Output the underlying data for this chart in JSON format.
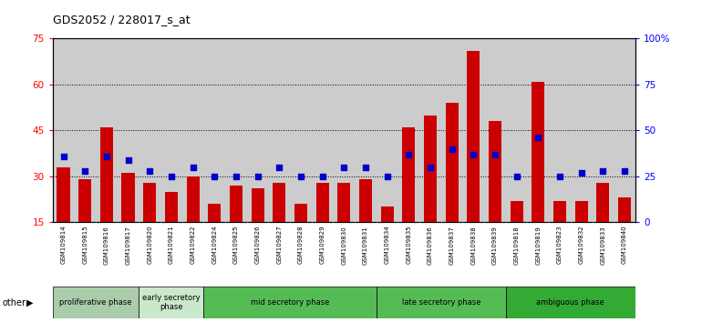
{
  "title": "GDS2052 / 228017_s_at",
  "samples": [
    "GSM109814",
    "GSM109815",
    "GSM109816",
    "GSM109817",
    "GSM109820",
    "GSM109821",
    "GSM109822",
    "GSM109824",
    "GSM109825",
    "GSM109826",
    "GSM109827",
    "GSM109828",
    "GSM109829",
    "GSM109830",
    "GSM109831",
    "GSM109834",
    "GSM109835",
    "GSM109836",
    "GSM109837",
    "GSM109838",
    "GSM109839",
    "GSM109818",
    "GSM109819",
    "GSM109823",
    "GSM109832",
    "GSM109833",
    "GSM109840"
  ],
  "count_values": [
    33,
    29,
    46,
    31,
    28,
    25,
    30,
    21,
    27,
    26,
    28,
    21,
    28,
    28,
    29,
    20,
    46,
    50,
    54,
    71,
    48,
    22,
    61,
    22,
    22,
    28,
    23
  ],
  "percentile_values": [
    36,
    28,
    36,
    34,
    28,
    25,
    30,
    25,
    25,
    25,
    30,
    25,
    25,
    30,
    30,
    25,
    37,
    30,
    40,
    37,
    37,
    25,
    46,
    25,
    27,
    28,
    28
  ],
  "phase_groups": [
    {
      "label": "proliferative phase",
      "indices": [
        0,
        1,
        2,
        3
      ],
      "color": "#aaccaa"
    },
    {
      "label": "early secretory\nphase",
      "indices": [
        4,
        5,
        6
      ],
      "color": "#cce8cc"
    },
    {
      "label": "mid secretory phase",
      "indices": [
        7,
        8,
        9,
        10,
        11,
        12,
        13,
        14
      ],
      "color": "#55bb55"
    },
    {
      "label": "late secretory phase",
      "indices": [
        15,
        16,
        17,
        18,
        19,
        20
      ],
      "color": "#55bb55"
    },
    {
      "label": "ambiguous phase",
      "indices": [
        21,
        22,
        23,
        24,
        25,
        26
      ],
      "color": "#33aa33"
    }
  ],
  "ylim_left": [
    15,
    75
  ],
  "ylim_right": [
    0,
    100
  ],
  "yticks_left": [
    15,
    30,
    45,
    60,
    75
  ],
  "yticks_right": [
    0,
    25,
    50,
    75,
    100
  ],
  "bar_color": "#cc0000",
  "percentile_color": "#0000cc",
  "bg_color": "#cccccc",
  "grid_color": "#000000"
}
